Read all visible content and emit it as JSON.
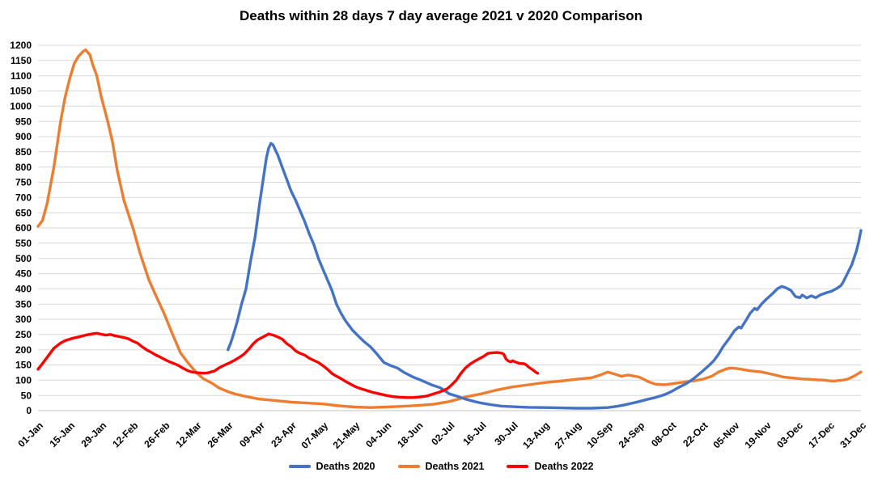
{
  "title": "Deaths within 28 days 7 day average 2021 v 2020 Comparison",
  "chart_data": {
    "type": "line",
    "title": "Deaths within 28 days 7 day average 2021 v 2020 Comparison",
    "xlabel": "",
    "ylabel": "",
    "grid": "horizontal-only",
    "legend_position": "bottom",
    "y_axis": {
      "min": 0,
      "max": 1200,
      "step": 50
    },
    "x_tick_interval_days": 14,
    "x_tick_labels": [
      "01-Jan",
      "15-Jan",
      "29-Jan",
      "12-Feb",
      "26-Feb",
      "12-Mar",
      "26-Mar",
      "09-Apr",
      "23-Apr",
      "07-May",
      "21-May",
      "04-Jun",
      "18-Jun",
      "02-Jul",
      "16-Jul",
      "30-Jul",
      "13-Aug",
      "27-Aug",
      "10-Sep",
      "24-Sep",
      "08-Oct",
      "22-Oct",
      "05-Nov",
      "19-Nov",
      "03-Dec",
      "17-Dec",
      "31-Dec"
    ],
    "colors": {
      "deaths_2020": "#4472C4",
      "deaths_2021": "#ED7D31",
      "deaths_2022": "#FF0000",
      "gridline": "#D9D9D9"
    },
    "series": [
      {
        "name": "Deaths 2020",
        "color": "#4472C4",
        "points": [
          [
            84,
            200
          ],
          [
            85,
            218
          ],
          [
            86,
            240
          ],
          [
            87,
            265
          ],
          [
            88,
            290
          ],
          [
            89,
            320
          ],
          [
            90,
            350
          ],
          [
            91,
            375
          ],
          [
            92,
            400
          ],
          [
            93,
            445
          ],
          [
            94,
            490
          ],
          [
            95,
            530
          ],
          [
            96,
            570
          ],
          [
            97,
            625
          ],
          [
            98,
            680
          ],
          [
            99,
            730
          ],
          [
            100,
            780
          ],
          [
            101,
            830
          ],
          [
            102,
            862
          ],
          [
            103,
            878
          ],
          [
            104,
            872
          ],
          [
            105,
            855
          ],
          [
            106,
            840
          ],
          [
            108,
            800
          ],
          [
            110,
            760
          ],
          [
            112,
            720
          ],
          [
            114,
            690
          ],
          [
            116,
            655
          ],
          [
            118,
            620
          ],
          [
            120,
            580
          ],
          [
            122,
            545
          ],
          [
            124,
            500
          ],
          [
            126,
            465
          ],
          [
            128,
            430
          ],
          [
            130,
            395
          ],
          [
            132,
            350
          ],
          [
            134,
            320
          ],
          [
            136,
            295
          ],
          [
            139,
            265
          ],
          [
            141,
            250
          ],
          [
            144,
            228
          ],
          [
            147,
            210
          ],
          [
            150,
            185
          ],
          [
            153,
            158
          ],
          [
            156,
            148
          ],
          [
            159,
            140
          ],
          [
            162,
            125
          ],
          [
            166,
            110
          ],
          [
            170,
            98
          ],
          [
            174,
            85
          ],
          [
            178,
            75
          ],
          [
            182,
            55
          ],
          [
            185,
            48
          ],
          [
            189,
            38
          ],
          [
            193,
            30
          ],
          [
            196,
            25
          ],
          [
            200,
            20
          ],
          [
            205,
            15
          ],
          [
            210,
            13
          ],
          [
            217,
            11
          ],
          [
            224,
            10
          ],
          [
            231,
            9
          ],
          [
            238,
            8
          ],
          [
            245,
            8
          ],
          [
            252,
            10
          ],
          [
            256,
            14
          ],
          [
            259,
            18
          ],
          [
            263,
            25
          ],
          [
            266,
            30
          ],
          [
            270,
            38
          ],
          [
            273,
            43
          ],
          [
            277,
            52
          ],
          [
            280,
            62
          ],
          [
            283,
            75
          ],
          [
            287,
            90
          ],
          [
            290,
            105
          ],
          [
            294,
            130
          ],
          [
            297,
            150
          ],
          [
            299,
            165
          ],
          [
            301,
            185
          ],
          [
            303,
            210
          ],
          [
            306,
            240
          ],
          [
            308,
            262
          ],
          [
            310,
            275
          ],
          [
            311,
            271
          ],
          [
            313,
            295
          ],
          [
            315,
            320
          ],
          [
            317,
            336
          ],
          [
            318,
            331
          ],
          [
            320,
            350
          ],
          [
            322,
            365
          ],
          [
            325,
            385
          ],
          [
            327,
            400
          ],
          [
            329,
            408
          ],
          [
            331,
            403
          ],
          [
            333,
            395
          ],
          [
            335,
            375
          ],
          [
            337,
            371
          ],
          [
            338,
            380
          ],
          [
            340,
            370
          ],
          [
            342,
            377
          ],
          [
            344,
            371
          ],
          [
            346,
            380
          ],
          [
            349,
            388
          ],
          [
            351,
            392
          ],
          [
            353,
            400
          ],
          [
            355,
            410
          ],
          [
            356,
            420
          ],
          [
            358,
            450
          ],
          [
            360,
            480
          ],
          [
            362,
            525
          ],
          [
            363,
            555
          ],
          [
            364,
            592
          ]
        ]
      },
      {
        "name": "Deaths 2021",
        "color": "#ED7D31",
        "points": [
          [
            0,
            605
          ],
          [
            2,
            625
          ],
          [
            4,
            680
          ],
          [
            7,
            800
          ],
          [
            10,
            950
          ],
          [
            12,
            1030
          ],
          [
            14,
            1090
          ],
          [
            16,
            1140
          ],
          [
            18,
            1165
          ],
          [
            20,
            1180
          ],
          [
            21,
            1185
          ],
          [
            23,
            1168
          ],
          [
            24,
            1140
          ],
          [
            26,
            1100
          ],
          [
            28,
            1030
          ],
          [
            31,
            945
          ],
          [
            33,
            880
          ],
          [
            35,
            790
          ],
          [
            38,
            690
          ],
          [
            42,
            600
          ],
          [
            45,
            520
          ],
          [
            49,
            430
          ],
          [
            52,
            380
          ],
          [
            56,
            315
          ],
          [
            59,
            260
          ],
          [
            63,
            190
          ],
          [
            66,
            160
          ],
          [
            70,
            125
          ],
          [
            73,
            105
          ],
          [
            77,
            90
          ],
          [
            80,
            75
          ],
          [
            84,
            62
          ],
          [
            87,
            55
          ],
          [
            91,
            48
          ],
          [
            95,
            42
          ],
          [
            98,
            38
          ],
          [
            105,
            33
          ],
          [
            112,
            28
          ],
          [
            119,
            25
          ],
          [
            126,
            22
          ],
          [
            133,
            16
          ],
          [
            140,
            12
          ],
          [
            147,
            10
          ],
          [
            154,
            12
          ],
          [
            161,
            14
          ],
          [
            168,
            17
          ],
          [
            175,
            21
          ],
          [
            182,
            30
          ],
          [
            186,
            38
          ],
          [
            189,
            45
          ],
          [
            196,
            55
          ],
          [
            203,
            68
          ],
          [
            210,
            78
          ],
          [
            217,
            85
          ],
          [
            224,
            92
          ],
          [
            231,
            97
          ],
          [
            238,
            103
          ],
          [
            245,
            108
          ],
          [
            249,
            118
          ],
          [
            252,
            127
          ],
          [
            255,
            120
          ],
          [
            258,
            113
          ],
          [
            261,
            117
          ],
          [
            264,
            113
          ],
          [
            266,
            110
          ],
          [
            270,
            95
          ],
          [
            273,
            87
          ],
          [
            277,
            85
          ],
          [
            280,
            88
          ],
          [
            284,
            92
          ],
          [
            287,
            95
          ],
          [
            291,
            99
          ],
          [
            294,
            103
          ],
          [
            298,
            113
          ],
          [
            301,
            127
          ],
          [
            304,
            136
          ],
          [
            306,
            140
          ],
          [
            308,
            139
          ],
          [
            311,
            136
          ],
          [
            315,
            131
          ],
          [
            320,
            127
          ],
          [
            323,
            122
          ],
          [
            326,
            117
          ],
          [
            330,
            110
          ],
          [
            334,
            107
          ],
          [
            338,
            104
          ],
          [
            341,
            103
          ],
          [
            345,
            101
          ],
          [
            348,
            100
          ],
          [
            350,
            98
          ],
          [
            352,
            97
          ],
          [
            354,
            99
          ],
          [
            356,
            100
          ],
          [
            358,
            103
          ],
          [
            360,
            110
          ],
          [
            362,
            118
          ],
          [
            364,
            127
          ]
        ]
      },
      {
        "name": "Deaths 2022",
        "color": "#FF0000",
        "points": [
          [
            0,
            136
          ],
          [
            2,
            155
          ],
          [
            4,
            175
          ],
          [
            7,
            205
          ],
          [
            10,
            222
          ],
          [
            12,
            230
          ],
          [
            15,
            237
          ],
          [
            18,
            242
          ],
          [
            21,
            248
          ],
          [
            24,
            252
          ],
          [
            26,
            254
          ],
          [
            28,
            251
          ],
          [
            30,
            248
          ],
          [
            32,
            250
          ],
          [
            34,
            246
          ],
          [
            36,
            243
          ],
          [
            38,
            240
          ],
          [
            40,
            236
          ],
          [
            42,
            228
          ],
          [
            44,
            222
          ],
          [
            46,
            210
          ],
          [
            48,
            200
          ],
          [
            50,
            192
          ],
          [
            52,
            183
          ],
          [
            54,
            176
          ],
          [
            56,
            168
          ],
          [
            58,
            161
          ],
          [
            60,
            155
          ],
          [
            62,
            149
          ],
          [
            64,
            140
          ],
          [
            66,
            132
          ],
          [
            68,
            127
          ],
          [
            70,
            125
          ],
          [
            73,
            123
          ],
          [
            75,
            124
          ],
          [
            78,
            130
          ],
          [
            80,
            140
          ],
          [
            82,
            148
          ],
          [
            85,
            158
          ],
          [
            87,
            166
          ],
          [
            89,
            175
          ],
          [
            91,
            185
          ],
          [
            93,
            200
          ],
          [
            95,
            218
          ],
          [
            97,
            232
          ],
          [
            99,
            240
          ],
          [
            101,
            248
          ],
          [
            102,
            252
          ],
          [
            104,
            248
          ],
          [
            106,
            242
          ],
          [
            108,
            235
          ],
          [
            110,
            220
          ],
          [
            112,
            210
          ],
          [
            114,
            196
          ],
          [
            116,
            188
          ],
          [
            118,
            182
          ],
          [
            120,
            172
          ],
          [
            122,
            165
          ],
          [
            124,
            158
          ],
          [
            126,
            148
          ],
          [
            128,
            136
          ],
          [
            130,
            122
          ],
          [
            132,
            113
          ],
          [
            134,
            105
          ],
          [
            136,
            96
          ],
          [
            138,
            88
          ],
          [
            140,
            80
          ],
          [
            142,
            74
          ],
          [
            145,
            67
          ],
          [
            148,
            60
          ],
          [
            151,
            55
          ],
          [
            154,
            50
          ],
          [
            157,
            46
          ],
          [
            160,
            44
          ],
          [
            163,
            43
          ],
          [
            166,
            43
          ],
          [
            169,
            45
          ],
          [
            172,
            48
          ],
          [
            175,
            55
          ],
          [
            178,
            62
          ],
          [
            181,
            72
          ],
          [
            183,
            85
          ],
          [
            185,
            100
          ],
          [
            187,
            122
          ],
          [
            189,
            140
          ],
          [
            191,
            152
          ],
          [
            193,
            162
          ],
          [
            195,
            170
          ],
          [
            197,
            178
          ],
          [
            199,
            188
          ],
          [
            201,
            190
          ],
          [
            203,
            191
          ],
          [
            205,
            189
          ],
          [
            206,
            185
          ],
          [
            207,
            170
          ],
          [
            208,
            163
          ],
          [
            209,
            160
          ],
          [
            210,
            164
          ],
          [
            211,
            160
          ],
          [
            213,
            155
          ],
          [
            215,
            154
          ],
          [
            216,
            150
          ],
          [
            217,
            143
          ],
          [
            218,
            138
          ],
          [
            219,
            133
          ],
          [
            220,
            127
          ],
          [
            221,
            123
          ]
        ]
      }
    ]
  },
  "legend": {
    "items": [
      "Deaths 2020",
      "Deaths 2021",
      "Deaths 2022"
    ]
  }
}
